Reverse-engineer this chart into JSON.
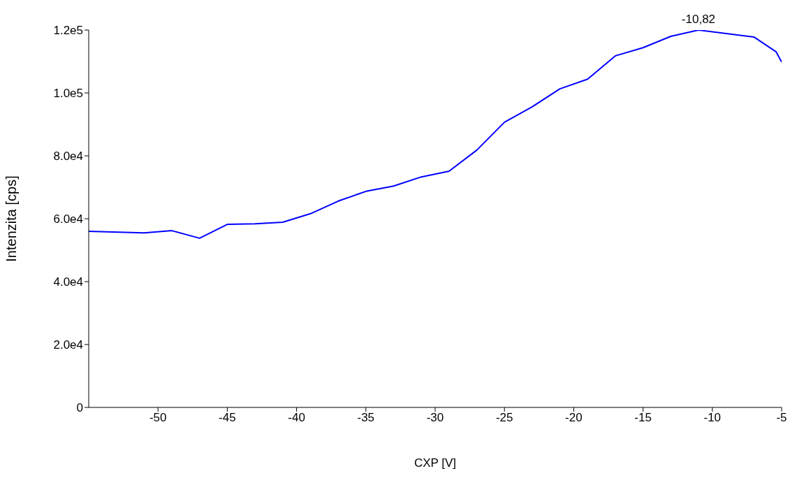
{
  "chart_data": {
    "type": "line",
    "xlabel": "CXP [V]",
    "ylabel": "Intenzita [cps]",
    "color": "#0000ff",
    "x": [
      -55,
      -51,
      -49,
      -47,
      -45,
      -43,
      -41,
      -39,
      -37,
      -35,
      -33,
      -31,
      -29,
      -27,
      -25,
      -23,
      -21,
      -19,
      -17,
      -15,
      -13,
      -11,
      -9,
      -7,
      -5.4,
      -5
    ],
    "values": [
      56000,
      55500,
      56200,
      53800,
      58200,
      58400,
      58900,
      61600,
      65600,
      68700,
      70400,
      73300,
      75100,
      81800,
      90700,
      95600,
      101300,
      104400,
      111800,
      114400,
      118000,
      120000,
      118900,
      117800,
      113100,
      109800
    ],
    "xlim": [
      -55,
      -5
    ],
    "xticks": [
      -50,
      -45,
      -40,
      -35,
      -30,
      -25,
      -20,
      -15,
      -10,
      -5
    ],
    "ylim": [
      0,
      120000
    ],
    "yticks": [
      0,
      {
        "value": 20000,
        "label": "2.0e4"
      },
      {
        "value": 40000,
        "label": "4.0e4"
      },
      {
        "value": 60000,
        "label": "6.0e4"
      },
      {
        "value": 80000,
        "label": "8.0e4"
      },
      {
        "value": 100000,
        "label": "1.0e5"
      },
      {
        "value": 120000,
        "label": "1.2e5"
      }
    ],
    "annotations": [
      {
        "text": "-10,82",
        "x": -11,
        "y": 120000
      }
    ],
    "grid": false,
    "marker": "none",
    "line_style": "solid"
  }
}
